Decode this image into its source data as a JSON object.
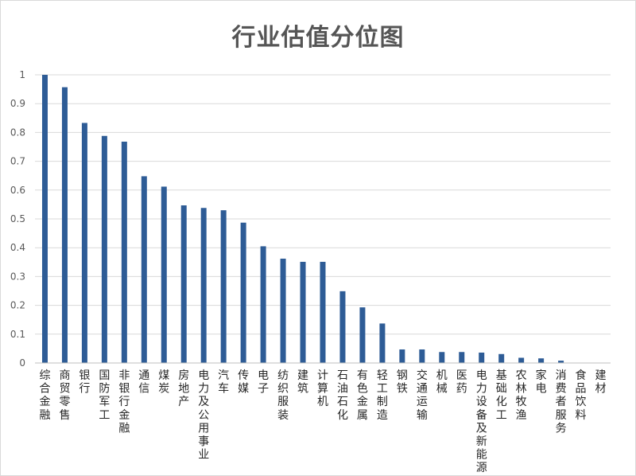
{
  "chart_data": {
    "type": "bar",
    "title": "行业估值分位图",
    "xlabel": "",
    "ylabel": "",
    "ylim": [
      0,
      1
    ],
    "yticks": [
      "0",
      "0.1",
      "0.2",
      "0.3",
      "0.4",
      "0.5",
      "0.6",
      "0.7",
      "0.8",
      "0.9",
      "1"
    ],
    "grid": true,
    "legend": "none",
    "bar_color": "#2E5C96",
    "categories": [
      "综合金融",
      "商贸零售",
      "银行",
      "国防军工",
      "非银行金融",
      "通信",
      "煤炭",
      "房地产",
      "电力及公用事业",
      "汽车",
      "传媒",
      "电子",
      "纺织服装",
      "建筑",
      "计算机",
      "石油石化",
      "有色金属",
      "轻工制造",
      "钢铁",
      "交通运输",
      "机械",
      "医药",
      "电力设备及新能源",
      "基础化工",
      "农林牧渔",
      "家电",
      "消费者服务",
      "食品饮料",
      "建材"
    ],
    "values": [
      1.0,
      0.957,
      0.833,
      0.788,
      0.768,
      0.648,
      0.612,
      0.547,
      0.538,
      0.53,
      0.487,
      0.405,
      0.362,
      0.351,
      0.351,
      0.249,
      0.193,
      0.137,
      0.047,
      0.047,
      0.038,
      0.038,
      0.036,
      0.031,
      0.018,
      0.016,
      0.008,
      0.0,
      0.0
    ]
  }
}
